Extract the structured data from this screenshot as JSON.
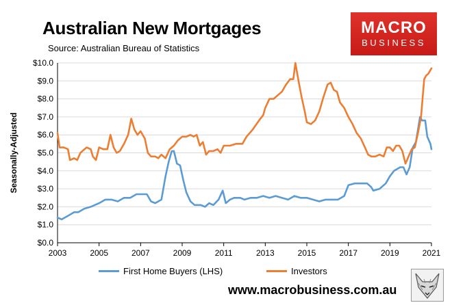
{
  "header": {
    "title": "Australian New Mortgages",
    "subtitle": "Source: Australian Bureau of Statistics"
  },
  "logo": {
    "line1": "MACRO",
    "line2": "BUSINESS"
  },
  "footer": {
    "url": "www.macrobusiness.com.au",
    "fox_icon": "fox-logo-icon"
  },
  "colors": {
    "first_home_buyers": "#5b9bd5",
    "investors": "#ed7d31",
    "logo_bg": "#d42a24",
    "grid": "#d9d9d9"
  },
  "chart_data": {
    "type": "line",
    "title": "Australian New Mortgages",
    "subtitle": "Source: Australian Bureau of Statistics",
    "ylabel": "Seasonally-Adjusted",
    "xlabel": "",
    "xlim": [
      2003,
      2021
    ],
    "ylim": [
      0,
      10
    ],
    "x_ticks": [
      "2003",
      "2005",
      "2007",
      "2009",
      "2011",
      "2013",
      "2015",
      "2017",
      "2019",
      "2021"
    ],
    "y_ticks": [
      "$0.0",
      "$1.0",
      "$2.0",
      "$3.0",
      "$4.0",
      "$5.0",
      "$6.0",
      "$7.0",
      "$8.0",
      "$9.0",
      "$10.0"
    ],
    "grid": "horizontal",
    "legend": "bottom",
    "series": [
      {
        "name": "First Home Buyers (LHS)",
        "color": "#5b9bd5",
        "points": [
          [
            2003.0,
            1.4
          ],
          [
            2003.2,
            1.3
          ],
          [
            2003.5,
            1.5
          ],
          [
            2003.8,
            1.7
          ],
          [
            2004.0,
            1.7
          ],
          [
            2004.3,
            1.9
          ],
          [
            2004.6,
            2.0
          ],
          [
            2005.0,
            2.2
          ],
          [
            2005.3,
            2.4
          ],
          [
            2005.6,
            2.4
          ],
          [
            2005.9,
            2.3
          ],
          [
            2006.2,
            2.5
          ],
          [
            2006.5,
            2.5
          ],
          [
            2006.8,
            2.7
          ],
          [
            2007.0,
            2.7
          ],
          [
            2007.3,
            2.7
          ],
          [
            2007.5,
            2.3
          ],
          [
            2007.7,
            2.2
          ],
          [
            2008.0,
            2.4
          ],
          [
            2008.2,
            3.7
          ],
          [
            2008.35,
            4.5
          ],
          [
            2008.5,
            5.1
          ],
          [
            2008.6,
            5.1
          ],
          [
            2008.75,
            4.4
          ],
          [
            2008.9,
            4.3
          ],
          [
            2009.05,
            3.5
          ],
          [
            2009.2,
            2.8
          ],
          [
            2009.4,
            2.3
          ],
          [
            2009.6,
            2.1
          ],
          [
            2009.9,
            2.1
          ],
          [
            2010.1,
            2.0
          ],
          [
            2010.3,
            2.2
          ],
          [
            2010.5,
            2.1
          ],
          [
            2010.75,
            2.4
          ],
          [
            2010.95,
            2.9
          ],
          [
            2011.1,
            2.2
          ],
          [
            2011.3,
            2.4
          ],
          [
            2011.5,
            2.5
          ],
          [
            2011.8,
            2.5
          ],
          [
            2012.0,
            2.4
          ],
          [
            2012.3,
            2.5
          ],
          [
            2012.6,
            2.5
          ],
          [
            2012.9,
            2.6
          ],
          [
            2013.2,
            2.5
          ],
          [
            2013.5,
            2.6
          ],
          [
            2013.8,
            2.5
          ],
          [
            2014.1,
            2.4
          ],
          [
            2014.4,
            2.6
          ],
          [
            2014.7,
            2.5
          ],
          [
            2015.0,
            2.5
          ],
          [
            2015.3,
            2.4
          ],
          [
            2015.6,
            2.3
          ],
          [
            2015.9,
            2.4
          ],
          [
            2016.2,
            2.4
          ],
          [
            2016.5,
            2.4
          ],
          [
            2016.8,
            2.6
          ],
          [
            2017.0,
            3.2
          ],
          [
            2017.3,
            3.3
          ],
          [
            2017.6,
            3.3
          ],
          [
            2017.9,
            3.3
          ],
          [
            2018.1,
            3.1
          ],
          [
            2018.2,
            2.9
          ],
          [
            2018.5,
            3.0
          ],
          [
            2018.8,
            3.3
          ],
          [
            2019.0,
            3.7
          ],
          [
            2019.2,
            4.0
          ],
          [
            2019.5,
            4.2
          ],
          [
            2019.65,
            4.2
          ],
          [
            2019.8,
            3.8
          ],
          [
            2019.95,
            4.2
          ],
          [
            2020.1,
            5.3
          ],
          [
            2020.25,
            5.6
          ],
          [
            2020.45,
            7.0
          ],
          [
            2020.55,
            6.8
          ],
          [
            2020.7,
            6.8
          ],
          [
            2020.8,
            5.9
          ],
          [
            2020.95,
            5.5
          ],
          [
            2021.0,
            5.2
          ]
        ]
      },
      {
        "name": "Investors",
        "color": "#ed7d31",
        "points": [
          [
            2003.0,
            6.1
          ],
          [
            2003.1,
            5.3
          ],
          [
            2003.3,
            5.3
          ],
          [
            2003.5,
            5.2
          ],
          [
            2003.6,
            4.6
          ],
          [
            2003.8,
            4.7
          ],
          [
            2003.95,
            4.6
          ],
          [
            2004.1,
            5.0
          ],
          [
            2004.3,
            5.2
          ],
          [
            2004.4,
            5.3
          ],
          [
            2004.6,
            5.2
          ],
          [
            2004.7,
            4.8
          ],
          [
            2004.85,
            4.6
          ],
          [
            2005.0,
            5.3
          ],
          [
            2005.2,
            5.2
          ],
          [
            2005.4,
            5.2
          ],
          [
            2005.55,
            6.0
          ],
          [
            2005.7,
            5.3
          ],
          [
            2005.85,
            5.0
          ],
          [
            2006.0,
            5.1
          ],
          [
            2006.2,
            5.5
          ],
          [
            2006.4,
            6.0
          ],
          [
            2006.55,
            6.9
          ],
          [
            2006.7,
            6.3
          ],
          [
            2006.85,
            6.0
          ],
          [
            2007.0,
            6.2
          ],
          [
            2007.2,
            5.8
          ],
          [
            2007.35,
            5.0
          ],
          [
            2007.5,
            4.8
          ],
          [
            2007.7,
            4.8
          ],
          [
            2007.85,
            4.7
          ],
          [
            2008.0,
            4.9
          ],
          [
            2008.2,
            4.7
          ],
          [
            2008.4,
            5.2
          ],
          [
            2008.6,
            5.4
          ],
          [
            2008.8,
            5.7
          ],
          [
            2009.0,
            5.9
          ],
          [
            2009.2,
            5.9
          ],
          [
            2009.4,
            6.0
          ],
          [
            2009.55,
            5.9
          ],
          [
            2009.7,
            6.0
          ],
          [
            2009.85,
            5.4
          ],
          [
            2010.0,
            5.6
          ],
          [
            2010.15,
            4.9
          ],
          [
            2010.3,
            5.1
          ],
          [
            2010.5,
            5.1
          ],
          [
            2010.7,
            5.2
          ],
          [
            2010.85,
            5.0
          ],
          [
            2011.0,
            5.4
          ],
          [
            2011.3,
            5.4
          ],
          [
            2011.6,
            5.5
          ],
          [
            2011.9,
            5.5
          ],
          [
            2012.1,
            5.9
          ],
          [
            2012.4,
            6.3
          ],
          [
            2012.7,
            6.8
          ],
          [
            2012.9,
            7.1
          ],
          [
            2013.0,
            7.5
          ],
          [
            2013.2,
            8.0
          ],
          [
            2013.4,
            8.0
          ],
          [
            2013.6,
            8.2
          ],
          [
            2013.8,
            8.4
          ],
          [
            2014.0,
            8.8
          ],
          [
            2014.2,
            9.1
          ],
          [
            2014.35,
            9.1
          ],
          [
            2014.45,
            10.0
          ],
          [
            2014.6,
            9.0
          ],
          [
            2014.75,
            8.1
          ],
          [
            2014.9,
            7.3
          ],
          [
            2015.0,
            6.7
          ],
          [
            2015.2,
            6.6
          ],
          [
            2015.4,
            6.8
          ],
          [
            2015.6,
            7.3
          ],
          [
            2015.8,
            8.1
          ],
          [
            2016.0,
            8.8
          ],
          [
            2016.15,
            8.9
          ],
          [
            2016.3,
            8.5
          ],
          [
            2016.45,
            8.4
          ],
          [
            2016.6,
            7.8
          ],
          [
            2016.8,
            7.5
          ],
          [
            2017.0,
            7.0
          ],
          [
            2017.2,
            6.6
          ],
          [
            2017.4,
            6.1
          ],
          [
            2017.6,
            5.8
          ],
          [
            2017.8,
            5.3
          ],
          [
            2017.95,
            4.9
          ],
          [
            2018.1,
            4.8
          ],
          [
            2018.3,
            4.8
          ],
          [
            2018.5,
            4.9
          ],
          [
            2018.7,
            4.8
          ],
          [
            2018.85,
            5.3
          ],
          [
            2019.0,
            5.3
          ],
          [
            2019.15,
            5.1
          ],
          [
            2019.3,
            5.4
          ],
          [
            2019.45,
            5.4
          ],
          [
            2019.6,
            5.1
          ],
          [
            2019.75,
            4.4
          ],
          [
            2019.9,
            4.8
          ],
          [
            2020.05,
            5.2
          ],
          [
            2020.2,
            5.3
          ],
          [
            2020.35,
            6.1
          ],
          [
            2020.5,
            7.0
          ],
          [
            2020.65,
            9.1
          ],
          [
            2020.75,
            9.3
          ],
          [
            2020.85,
            9.4
          ],
          [
            2021.0,
            9.7
          ]
        ]
      }
    ]
  }
}
